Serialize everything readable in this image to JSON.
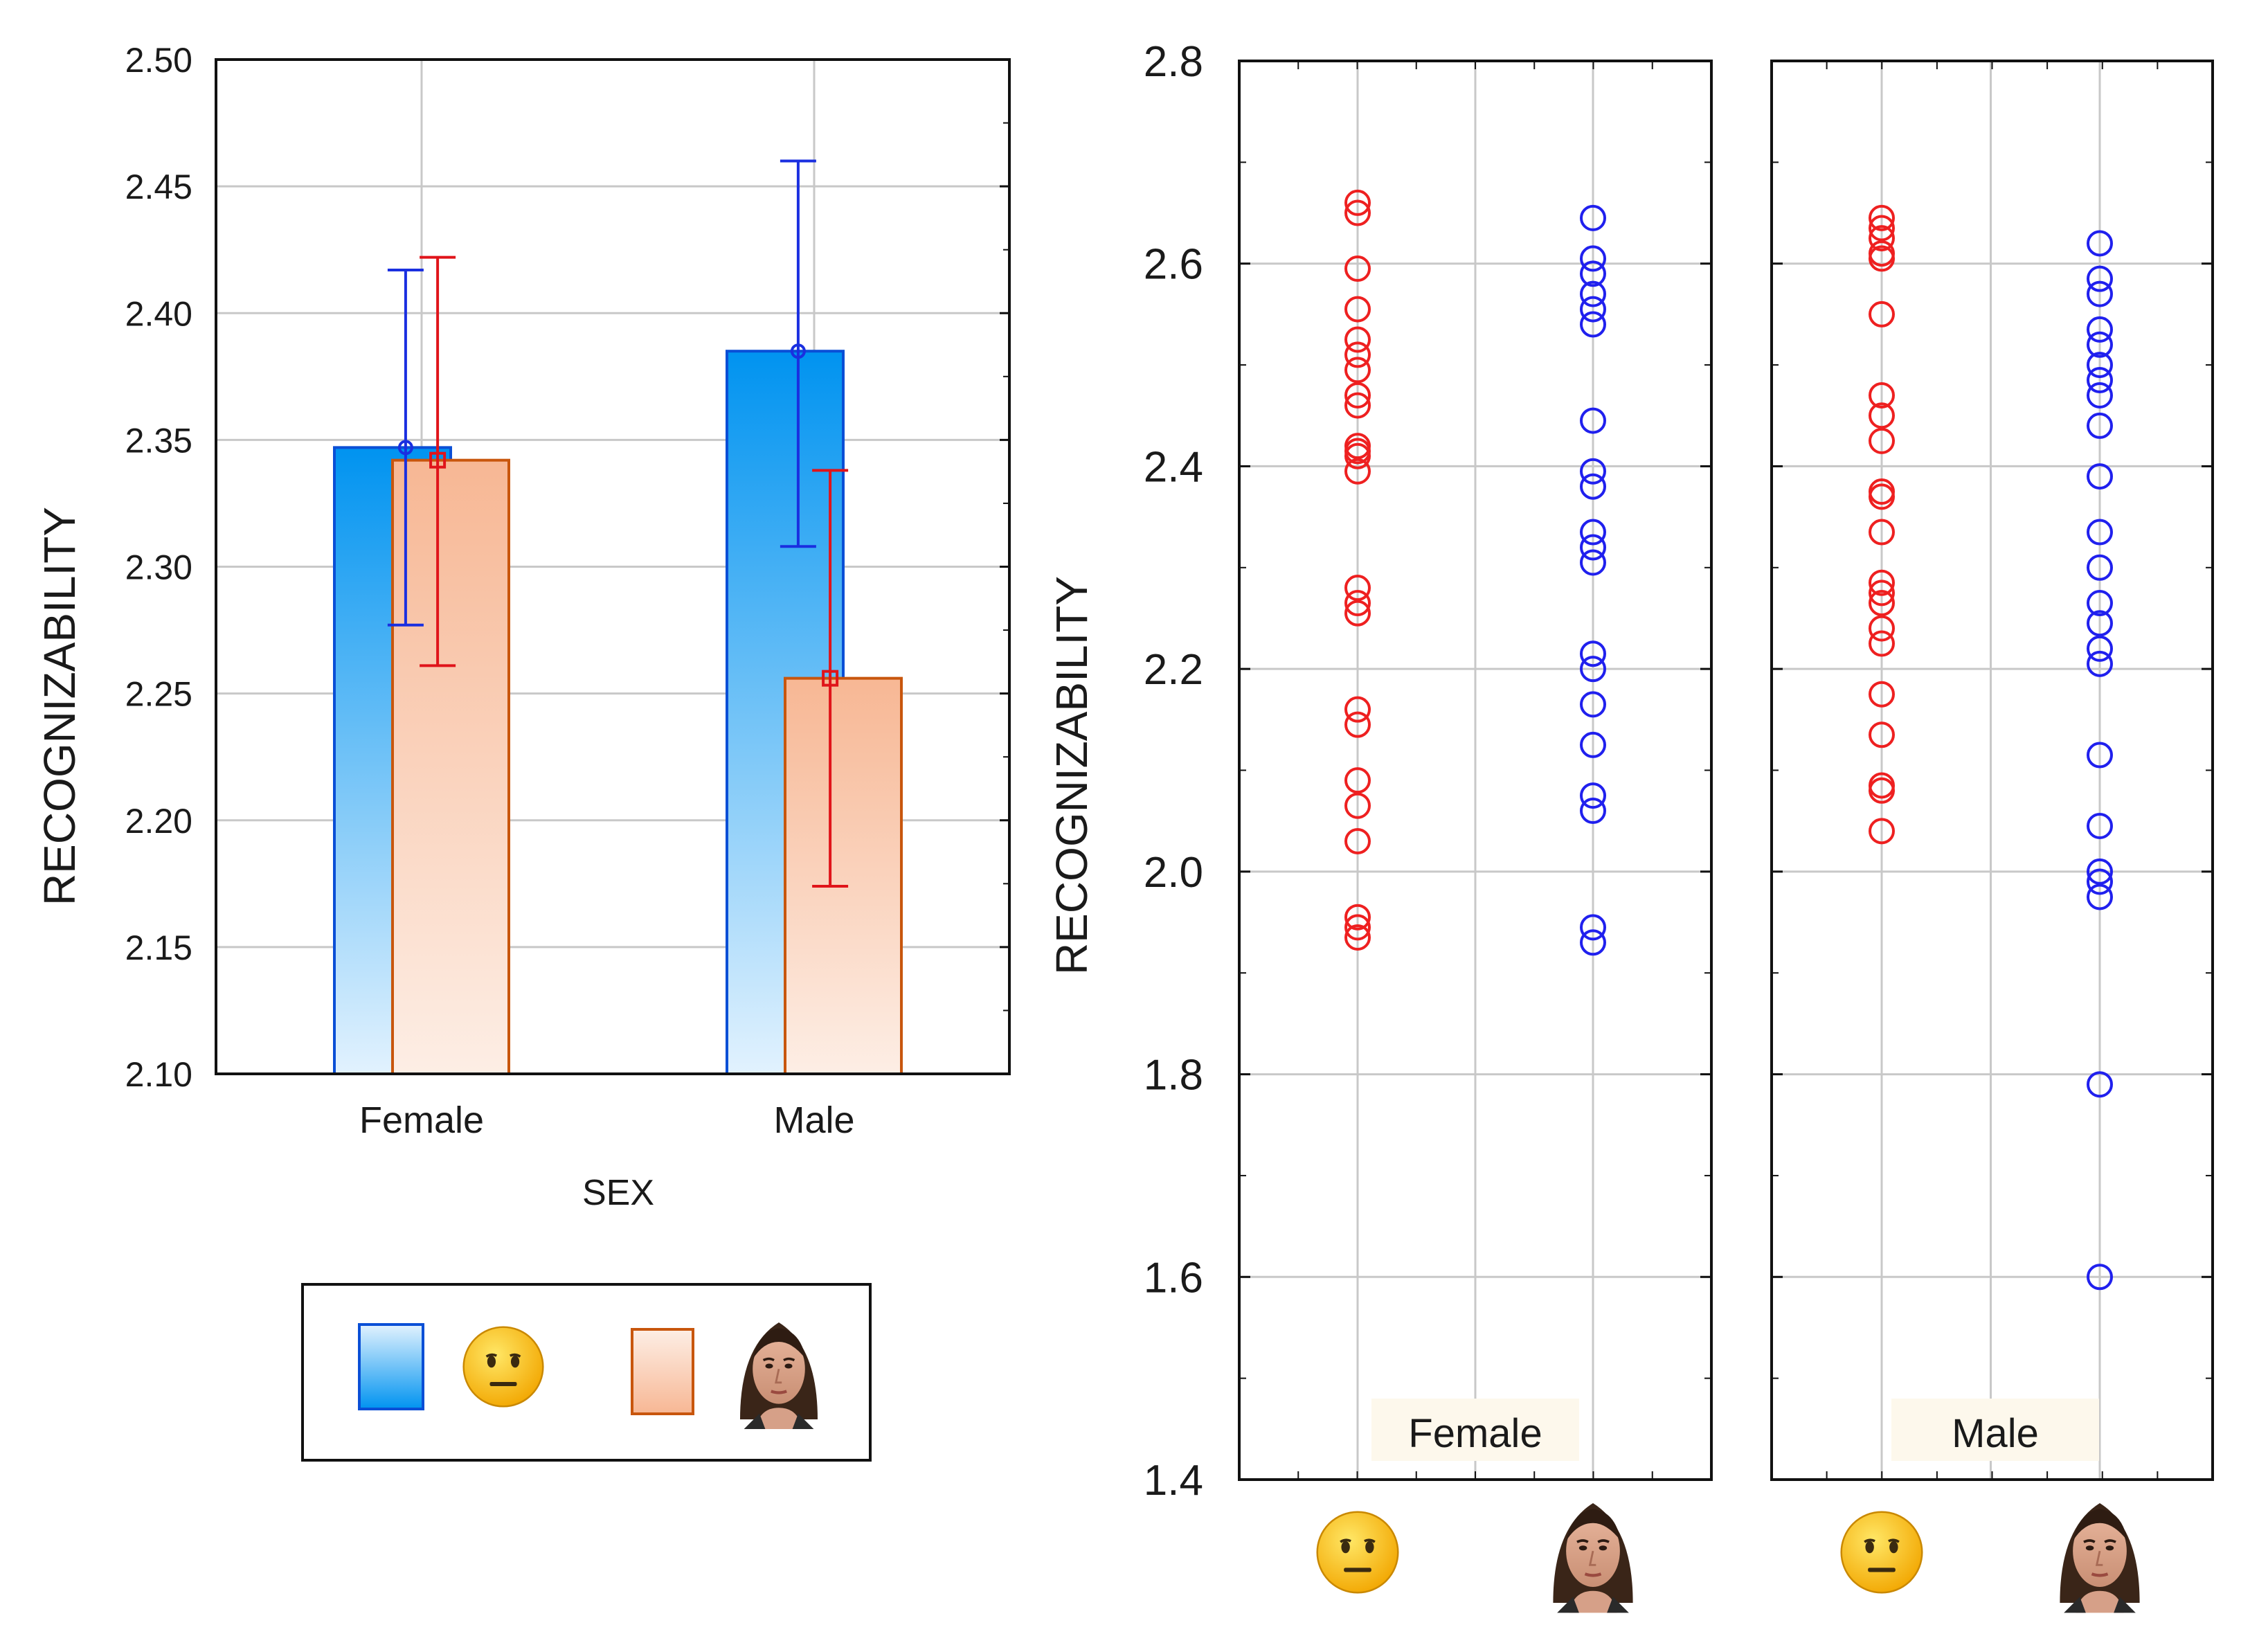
{
  "colors": {
    "emoji_series": "#0a4fd6",
    "face_series": "#c8560d",
    "emoji_bar_top": "#0093f0",
    "emoji_bar_bottom": "#e2f2fe",
    "face_bar_top": "#f7b794",
    "face_bar_bottom": "#fdeee5",
    "emoji_points": "#2020ee",
    "face_points": "#ee2020",
    "grid": "#c8c8c8"
  },
  "legend_icons": [
    "emoji-icon",
    "face-photo-icon"
  ],
  "chart_data": [
    {
      "type": "bar",
      "xlabel": "SEX",
      "ylabel": "RECOGNIZABILITY",
      "categories": [
        "Female",
        "Male"
      ],
      "ylim": [
        2.1,
        2.5
      ],
      "yticks": [
        "2.10",
        "2.15",
        "2.20",
        "2.25",
        "2.30",
        "2.35",
        "2.40",
        "2.45",
        "2.50"
      ],
      "error_bars": true,
      "grid": true,
      "legend_position": "below",
      "series": [
        {
          "icon": "emoji-icon",
          "values": [
            2.347,
            2.385
          ],
          "ci_low": [
            2.277,
            2.308
          ],
          "ci_high": [
            2.417,
            2.46
          ]
        },
        {
          "icon": "face-photo-icon",
          "values": [
            2.342,
            2.256
          ],
          "ci_low": [
            2.261,
            2.174
          ],
          "ci_high": [
            2.422,
            2.338
          ]
        }
      ]
    },
    {
      "type": "scatter",
      "ylabel": "RECOGNIZABILITY",
      "ylim": [
        1.4,
        2.8
      ],
      "yticks": [
        "1.4",
        "1.6",
        "1.8",
        "2.0",
        "2.2",
        "2.4",
        "2.6",
        "2.8"
      ],
      "grid": true,
      "panels": [
        {
          "label": "Female",
          "categories": [
            "emoji-icon",
            "face-photo-icon"
          ],
          "series": [
            {
              "icon": "emoji-icon",
              "values": [
                2.66,
                2.65,
                2.595,
                2.555,
                2.525,
                2.51,
                2.495,
                2.47,
                2.46,
                2.42,
                2.415,
                2.41,
                2.395,
                2.28,
                2.265,
                2.255,
                2.16,
                2.145,
                2.09,
                2.065,
                2.03,
                1.955,
                1.945,
                1.935
              ]
            },
            {
              "icon": "face-photo-icon",
              "values": [
                2.645,
                2.605,
                2.59,
                2.57,
                2.555,
                2.54,
                2.445,
                2.395,
                2.38,
                2.335,
                2.32,
                2.305,
                2.215,
                2.2,
                2.165,
                2.125,
                2.075,
                2.06,
                1.945,
                1.93
              ]
            }
          ]
        },
        {
          "label": "Male",
          "categories": [
            "emoji-icon",
            "face-photo-icon"
          ],
          "series": [
            {
              "icon": "emoji-icon",
              "values": [
                2.645,
                2.635,
                2.625,
                2.61,
                2.605,
                2.55,
                2.47,
                2.45,
                2.425,
                2.375,
                2.37,
                2.335,
                2.285,
                2.275,
                2.265,
                2.24,
                2.225,
                2.175,
                2.135,
                2.085,
                2.08,
                2.04
              ]
            },
            {
              "icon": "face-photo-icon",
              "values": [
                2.62,
                2.585,
                2.57,
                2.535,
                2.52,
                2.5,
                2.485,
                2.47,
                2.44,
                2.39,
                2.335,
                2.3,
                2.265,
                2.245,
                2.22,
                2.205,
                2.115,
                2.045,
                2.0,
                1.99,
                1.975,
                1.79,
                1.6
              ]
            }
          ]
        }
      ]
    }
  ]
}
